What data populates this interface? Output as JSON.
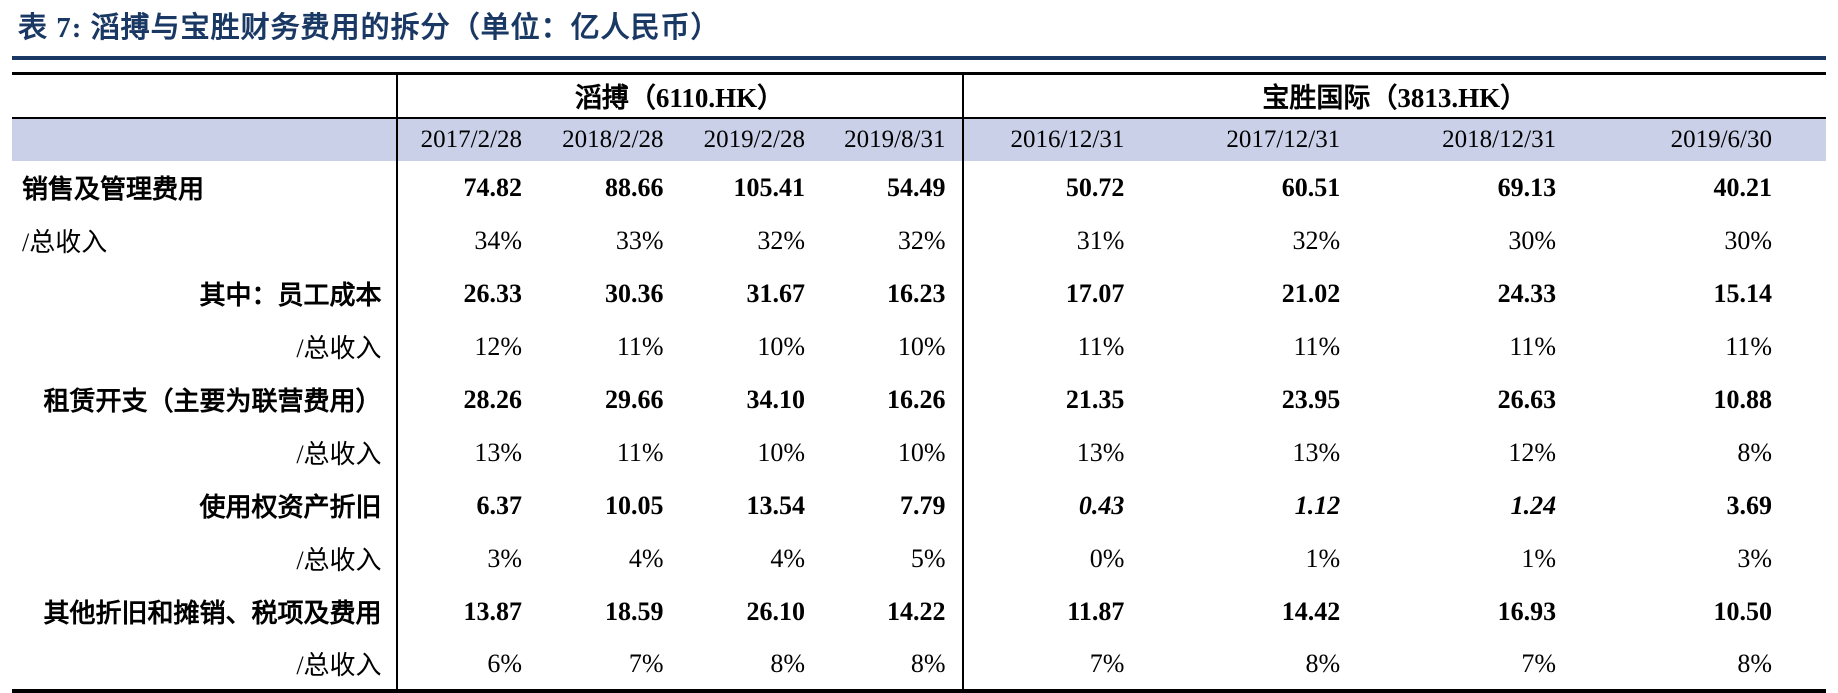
{
  "title": "表 7: 滔搏与宝胜财务费用的拆分（单位：亿人民币）",
  "colors": {
    "title_navy": "#1a3864",
    "header_band_lavender": "#c9d0e8",
    "table_line": "#000000"
  },
  "table": {
    "groups": [
      {
        "label": "滔搏（6110.HK）",
        "columns": [
          "2017/2/28",
          "2018/2/28",
          "2019/2/28",
          "2019/8/31"
        ]
      },
      {
        "label": "宝胜国际（3813.HK）",
        "columns": [
          "2016/12/31",
          "2017/12/31",
          "2018/12/31",
          "2019/6/30"
        ]
      }
    ],
    "rows": [
      {
        "label": "销售及管理费用",
        "align": "left",
        "bold": true,
        "values": [
          "74.82",
          "88.66",
          "105.41",
          "54.49",
          "50.72",
          "60.51",
          "69.13",
          "40.21"
        ]
      },
      {
        "label": "/总收入",
        "align": "left",
        "bold": false,
        "values": [
          "34%",
          "33%",
          "32%",
          "32%",
          "31%",
          "32%",
          "30%",
          "30%"
        ]
      },
      {
        "label": "其中：员工成本",
        "align": "right",
        "bold": true,
        "values": [
          "26.33",
          "30.36",
          "31.67",
          "16.23",
          "17.07",
          "21.02",
          "24.33",
          "15.14"
        ]
      },
      {
        "label": "/总收入",
        "align": "right",
        "bold": false,
        "values": [
          "12%",
          "11%",
          "10%",
          "10%",
          "11%",
          "11%",
          "11%",
          "11%"
        ]
      },
      {
        "label": "租赁开支（主要为联营费用）",
        "align": "right",
        "bold": true,
        "values": [
          "28.26",
          "29.66",
          "34.10",
          "16.26",
          "21.35",
          "23.95",
          "26.63",
          "10.88"
        ]
      },
      {
        "label": "/总收入",
        "align": "right",
        "bold": false,
        "values": [
          "13%",
          "11%",
          "10%",
          "10%",
          "13%",
          "13%",
          "12%",
          "8%"
        ]
      },
      {
        "label": "使用权资产折旧",
        "align": "right",
        "bold": true,
        "values": [
          "6.37",
          "10.05",
          "13.54",
          "7.79",
          "0.43",
          "1.12",
          "1.24",
          "3.69"
        ],
        "italic_cells": [
          4,
          5,
          6
        ]
      },
      {
        "label": "/总收入",
        "align": "right",
        "bold": false,
        "values": [
          "3%",
          "4%",
          "4%",
          "5%",
          "0%",
          "1%",
          "1%",
          "3%"
        ]
      },
      {
        "label": "其他折旧和摊销、税项及费用",
        "align": "right",
        "bold": true,
        "values": [
          "13.87",
          "18.59",
          "26.10",
          "14.22",
          "11.87",
          "14.42",
          "16.93",
          "10.50"
        ]
      },
      {
        "label": "/总收入",
        "align": "right",
        "bold": false,
        "values": [
          "6%",
          "7%",
          "8%",
          "8%",
          "7%",
          "8%",
          "7%",
          "8%"
        ]
      }
    ]
  },
  "chart_data": {
    "type": "table",
    "title": "表 7: 滔搏与宝胜财务费用的拆分（单位：亿人民币）",
    "column_groups": [
      "滔搏（6110.HK）",
      "宝胜国际（3813.HK）"
    ],
    "columns": [
      "2017/2/28",
      "2018/2/28",
      "2019/2/28",
      "2019/8/31",
      "2016/12/31",
      "2017/12/31",
      "2018/12/31",
      "2019/6/30"
    ],
    "row_labels": [
      "销售及管理费用",
      "/总收入",
      "其中：员工成本",
      "/总收入",
      "租赁开支（主要为联营费用）",
      "/总收入",
      "使用权资产折旧",
      "/总收入",
      "其他折旧和摊销、税项及费用",
      "/总收入"
    ]
  }
}
